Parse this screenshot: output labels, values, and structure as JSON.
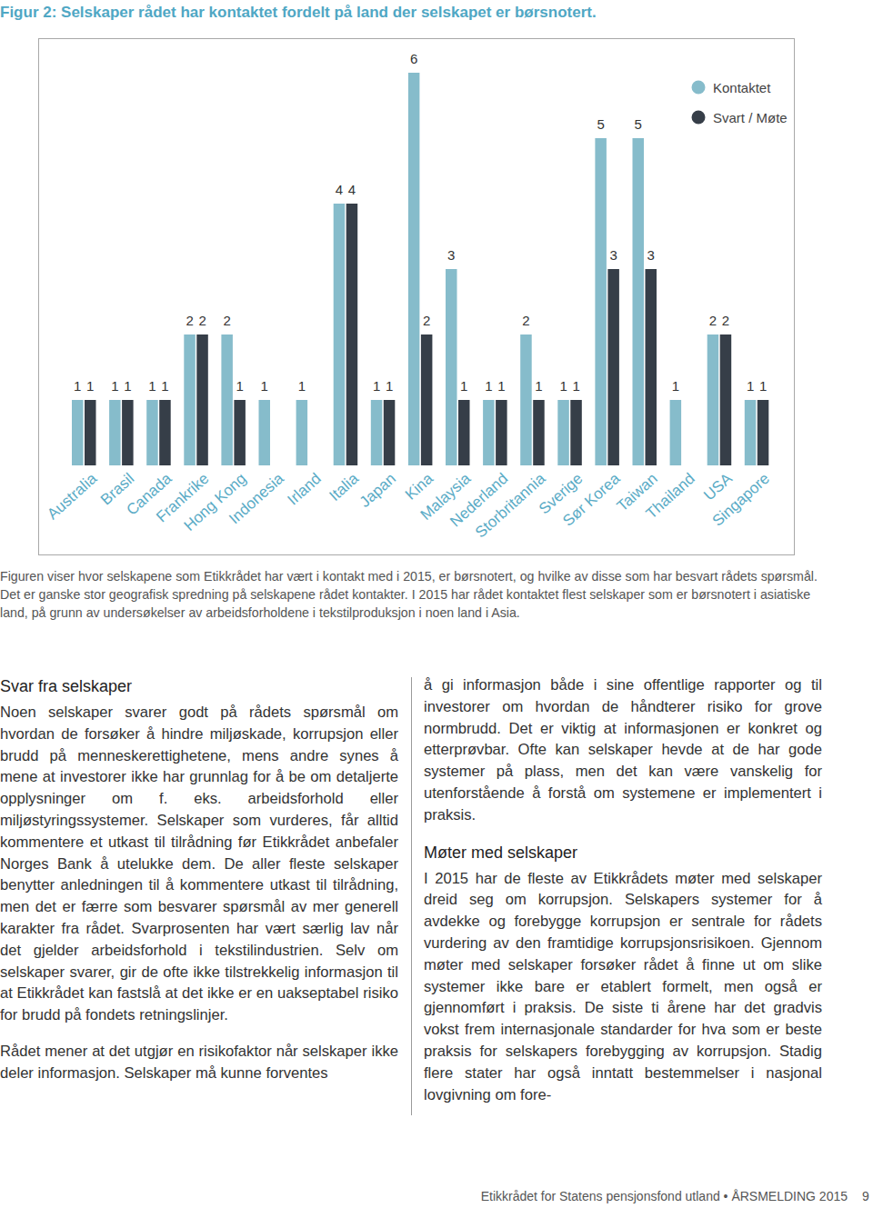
{
  "chart_data": {
    "type": "bar",
    "title": "Figur 2: Selskaper rådet har kontaktet fordelt på land der selskapet er børsnotert.",
    "categories": [
      "Australia",
      "Brasil",
      "Canada",
      "Frankrike",
      "Hong Kong",
      "Indonesia",
      "Irland",
      "Italia",
      "Japan",
      "Kina",
      "Malaysia",
      "Nederland",
      "Storbritannia",
      "Sverige",
      "Sør Korea",
      "Taiwan",
      "Thailand",
      "USA",
      "Singapore"
    ],
    "series": [
      {
        "name": "Kontaktet",
        "color": "#86bccb",
        "values": [
          1,
          1,
          1,
          2,
          2,
          1,
          1,
          4,
          1,
          6,
          3,
          1,
          2,
          1,
          5,
          5,
          1,
          2,
          1
        ]
      },
      {
        "name": "Svart / Møte",
        "color": "#363e48",
        "values": [
          1,
          1,
          1,
          2,
          1,
          null,
          null,
          4,
          1,
          2,
          1,
          1,
          1,
          1,
          3,
          3,
          null,
          2,
          1
        ]
      }
    ],
    "ylim": [
      0,
      6
    ],
    "tick_labels": "x",
    "data_labels": true,
    "legend": "top-right",
    "grid": false
  },
  "caption": "Figuren viser hvor selskapene som Etikkrådet har vært i kontakt med i 2015, er børsnotert, og hvilke av disse som har besvart rådets spørsmål. Det er ganske stor geografisk spredning på selskapene rådet kontakter. I 2015 har rådet kontaktet flest selskaper som er børsnotert i asiatiske land, på grunn av undersøkelser av arbeidsforholdene i tekstilproduksjon i noen land i Asia.",
  "columns": [
    {
      "blocks": [
        {
          "heading": "Svar fra selskaper"
        },
        {
          "text": "Noen selskaper svarer godt på rådets spørsmål om hvordan de forsøker å hindre miljøskade, korrupsjon eller brudd på menneskerettighetene, mens andre synes å mene at investorer ikke har grunnlag for å be om detaljerte opplysninger om f. eks. arbeidsforhold eller miljøstyringssystemer. Selskaper som vurderes, får alltid kommentere et utkast til tilrådning før Etikkrådet anbefaler Norges Bank å utelukke dem. De aller fleste selskaper benytter anledningen til å kommentere utkast til tilrådning, men det er færre som besvarer spørsmål av mer generell karakter fra rådet. Svarprosenten har vært særlig lav når det gjelder arbeidsforhold i tekstilindustrien. Selv om selskaper svarer, gir de ofte ikke tilstrekkelig informasjon til at Etikkrådet kan fastslå at det ikke er en uakseptabel risiko for brudd på fondets retningslinjer."
        },
        {
          "text": "Rådet mener at det utgjør en risikofaktor når selskaper ikke deler informasjon. Selskaper må kunne forventes"
        }
      ]
    },
    {
      "blocks": [
        {
          "text": "å gi informasjon både i sine offentlige rapporter og til investorer om hvordan de håndterer risiko for grove normbrudd. Det er viktig at informasjonen er konkret og etterprøvbar. Ofte kan selskaper hevde at de har gode systemer på plass, men det kan være vanskelig for utenforstående å forstå om systemene er implementert i praksis."
        },
        {
          "heading": "Møter med selskaper"
        },
        {
          "text": "I 2015 har de fleste av Etikkrådets møter med selskaper dreid seg om korrupsjon. Selskapers systemer for å avdekke og forebygge korrupsjon er sentrale for rådets vurdering av den framtidige korrupsjonsrisikoen. Gjennom møter med selskaper forsøker rådet å finne ut om slike systemer ikke bare er etablert formelt, men også er gjennomført i praksis. De siste ti årene har det gradvis vokst frem internasjonale standarder for hva som er beste praksis for selskapers forebygging av korrupsjon. Stadig flere stater har også inntatt bestemmelser i nasjonal lovgivning om fore-"
        }
      ]
    }
  ],
  "footer": {
    "text": "Etikkrådet for Statens pensjonsfond utland • ÅRSMELDING 2015",
    "page": 9
  }
}
